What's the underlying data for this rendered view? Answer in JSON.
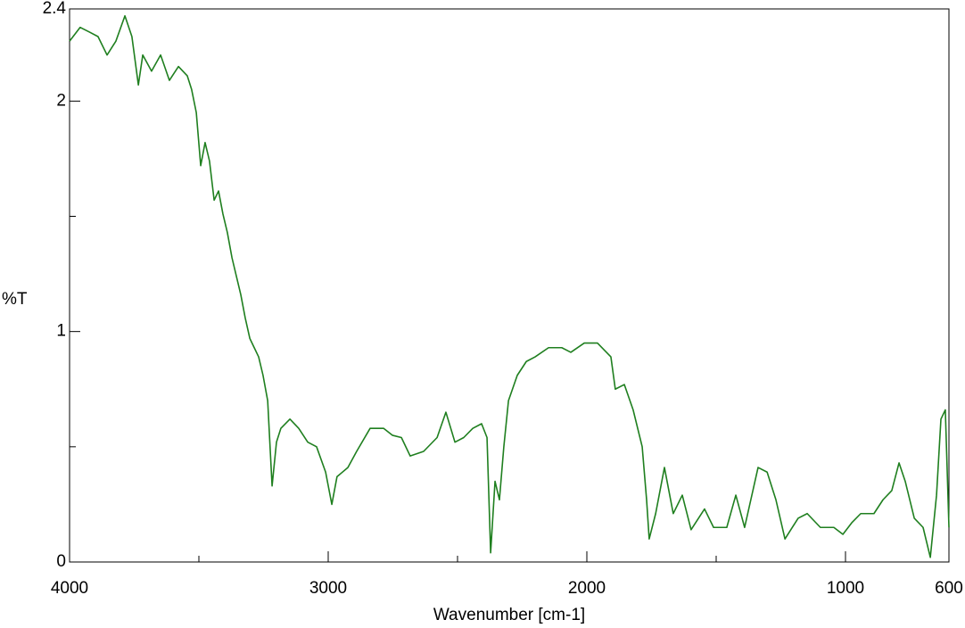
{
  "chart_data": {
    "type": "line",
    "x_label": "Wavenumber [cm-1]",
    "y_label": "%T",
    "xlim": [
      4000,
      600
    ],
    "ylim": [
      0,
      2.4
    ],
    "xticks": [
      4000,
      3000,
      2000,
      1000,
      600
    ],
    "xminor": [
      3500,
      2500,
      1500
    ],
    "yticks": [
      0,
      1,
      2,
      2.4
    ],
    "yminor": [
      0.5,
      1.5
    ],
    "series": [
      {
        "color": "#1f7f1f",
        "x": [
          4000,
          3959,
          3924,
          3890,
          3855,
          3821,
          3786,
          3759,
          3734,
          3717,
          3683,
          3648,
          3614,
          3579,
          3545,
          3528,
          3510,
          3493,
          3476,
          3459,
          3441,
          3424,
          3407,
          3390,
          3372,
          3355,
          3338,
          3321,
          3303,
          3286,
          3269,
          3252,
          3234,
          3217,
          3200,
          3183,
          3148,
          3114,
          3079,
          3045,
          3010,
          2986,
          2966,
          2924,
          2890,
          2838,
          2786,
          2752,
          2717,
          2683,
          2631,
          2579,
          2545,
          2510,
          2476,
          2441,
          2407,
          2386,
          2372,
          2355,
          2338,
          2321,
          2303,
          2269,
          2234,
          2200,
          2148,
          2097,
          2062,
          2010,
          1959,
          1907,
          1890,
          1855,
          1821,
          1786,
          1769,
          1759,
          1734,
          1700,
          1666,
          1631,
          1597,
          1545,
          1510,
          1459,
          1424,
          1390,
          1338,
          1303,
          1269,
          1234,
          1183,
          1148,
          1097,
          1045,
          1010,
          976,
          941,
          890,
          855,
          821,
          793,
          769,
          734,
          700,
          672,
          648,
          631,
          614,
          600
        ],
        "values": [
          2.26,
          2.32,
          2.3,
          2.28,
          2.2,
          2.26,
          2.37,
          2.28,
          2.07,
          2.2,
          2.13,
          2.2,
          2.09,
          2.15,
          2.11,
          2.05,
          1.95,
          1.72,
          1.82,
          1.74,
          1.57,
          1.61,
          1.51,
          1.43,
          1.32,
          1.24,
          1.16,
          1.06,
          0.97,
          0.93,
          0.89,
          0.81,
          0.7,
          0.33,
          0.52,
          0.58,
          0.62,
          0.58,
          0.52,
          0.5,
          0.39,
          0.25,
          0.37,
          0.41,
          0.48,
          0.58,
          0.58,
          0.55,
          0.54,
          0.46,
          0.48,
          0.54,
          0.65,
          0.52,
          0.54,
          0.58,
          0.6,
          0.54,
          0.04,
          0.35,
          0.27,
          0.5,
          0.7,
          0.81,
          0.87,
          0.89,
          0.93,
          0.93,
          0.91,
          0.95,
          0.95,
          0.89,
          0.75,
          0.77,
          0.66,
          0.5,
          0.27,
          0.1,
          0.21,
          0.41,
          0.21,
          0.29,
          0.14,
          0.23,
          0.15,
          0.15,
          0.29,
          0.15,
          0.41,
          0.39,
          0.27,
          0.1,
          0.19,
          0.21,
          0.15,
          0.15,
          0.12,
          0.17,
          0.21,
          0.21,
          0.27,
          0.31,
          0.43,
          0.35,
          0.19,
          0.15,
          0.02,
          0.29,
          0.62,
          0.66,
          0.15
        ]
      }
    ]
  }
}
